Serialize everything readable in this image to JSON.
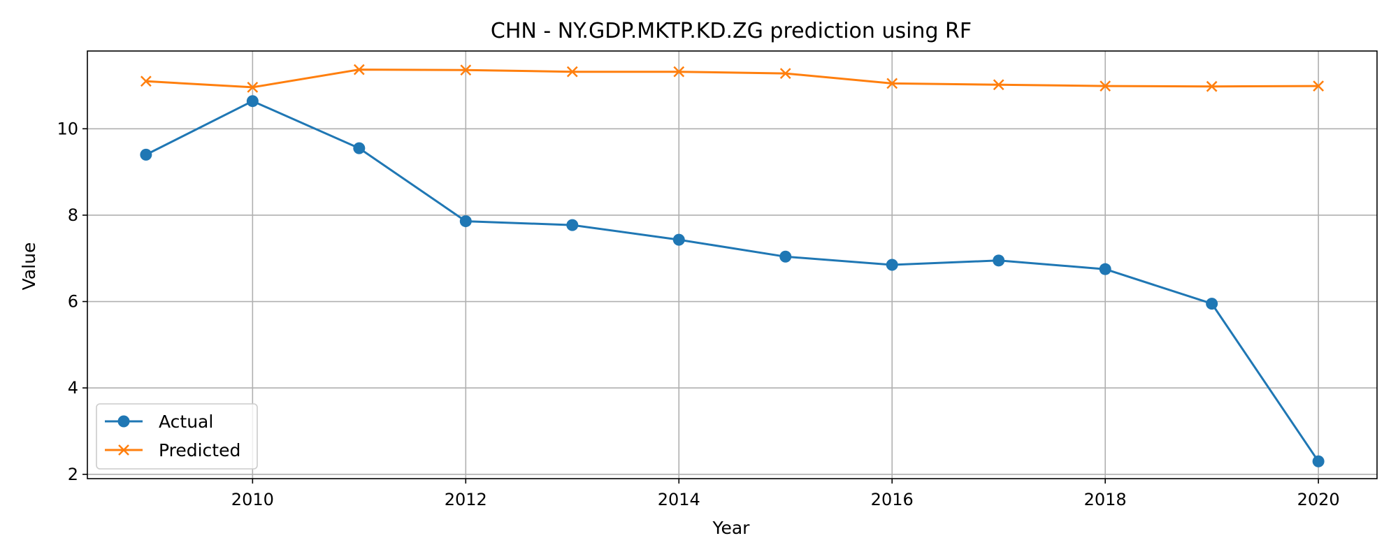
{
  "chart_data": {
    "type": "line",
    "title": "CHN - NY.GDP.MKTP.KD.ZG prediction using RF",
    "xlabel": "Year",
    "ylabel": "Value",
    "x": [
      2009,
      2010,
      2011,
      2012,
      2013,
      2014,
      2015,
      2016,
      2017,
      2018,
      2019,
      2020
    ],
    "xlim": [
      2008.45,
      2020.55
    ],
    "ylim": [
      1.9,
      11.8
    ],
    "xticks": [
      2010,
      2012,
      2014,
      2016,
      2018,
      2020
    ],
    "yticks": [
      2,
      4,
      6,
      8,
      10
    ],
    "grid": true,
    "legend_position": "lower-left",
    "series": [
      {
        "name": "Actual",
        "color": "#1f77b4",
        "marker": "circle",
        "values": [
          9.4,
          10.64,
          9.55,
          7.86,
          7.77,
          7.43,
          7.04,
          6.85,
          6.95,
          6.75,
          5.95,
          2.3
        ]
      },
      {
        "name": "Predicted",
        "color": "#ff7f0e",
        "marker": "x",
        "values": [
          11.1,
          10.96,
          11.37,
          11.36,
          11.32,
          11.32,
          11.28,
          11.05,
          11.02,
          10.99,
          10.98,
          10.99
        ]
      }
    ]
  }
}
